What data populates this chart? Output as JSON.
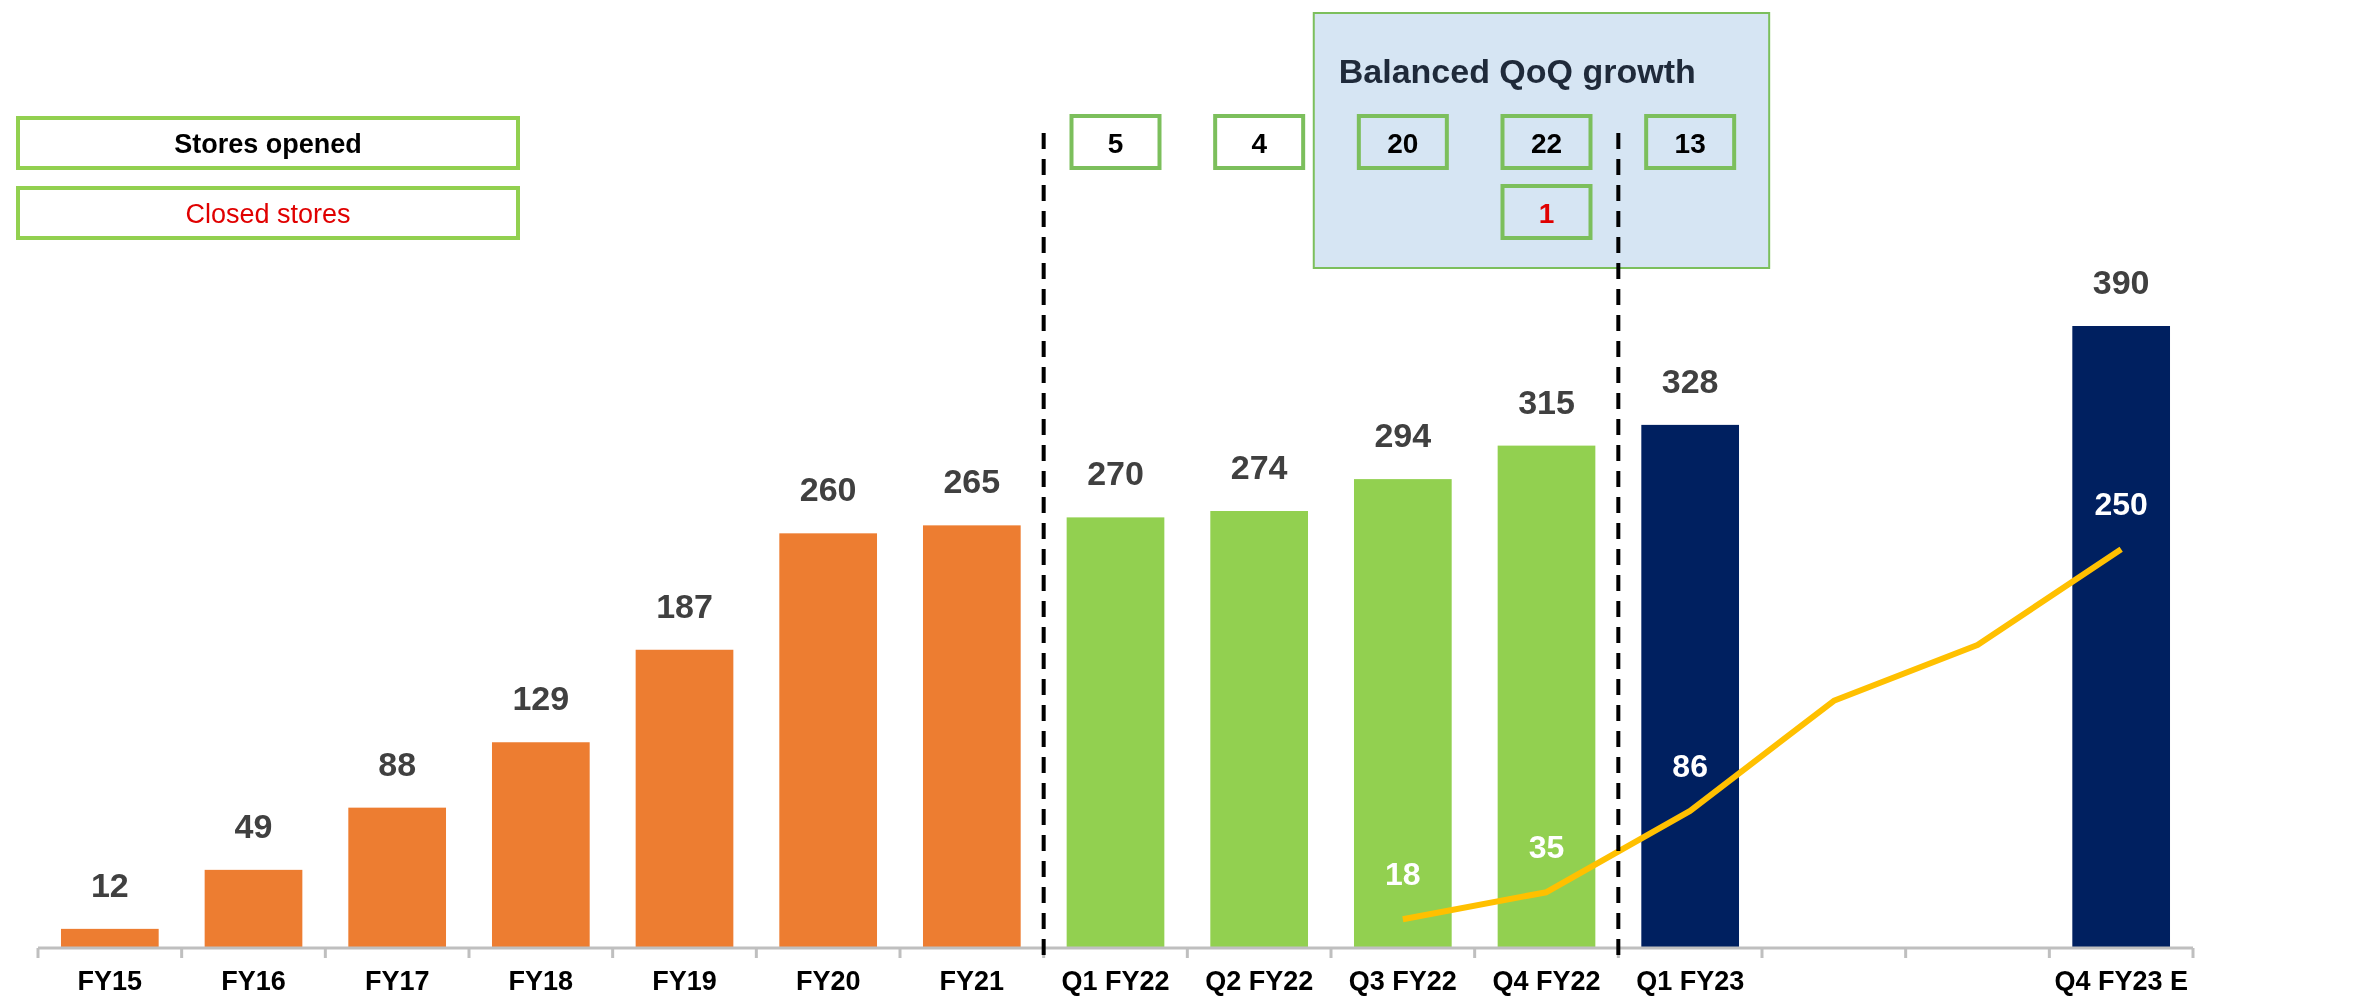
{
  "chart_data": {
    "type": "bar",
    "categories": [
      "FY15",
      "FY16",
      "FY17",
      "FY18",
      "FY19",
      "FY20",
      "FY21",
      "Q1 FY22",
      "Q2 FY22",
      "Q3 FY22",
      "Q4 FY22",
      "Q1 FY23",
      null,
      null,
      "Q4 FY23 E"
    ],
    "series": [
      {
        "colors": [
          "#ed7d31",
          "#ed7d31",
          "#ed7d31",
          "#ed7d31",
          "#ed7d31",
          "#ed7d31",
          "#ed7d31",
          "#92d050",
          "#92d050",
          "#92d050",
          "#92d050",
          "#002060",
          null,
          null,
          "#002060"
        ],
        "values": [
          12,
          49,
          88,
          129,
          187,
          260,
          265,
          270,
          274,
          294,
          315,
          328,
          null,
          null,
          390
        ],
        "value_labels": [
          "12",
          "49",
          "88",
          "129",
          "187",
          "260",
          "265",
          "270",
          "274",
          "294",
          "315",
          "328",
          null,
          null,
          "390"
        ]
      },
      {
        "type": "line",
        "color": "#ffc000",
        "values": [
          null,
          null,
          null,
          null,
          null,
          null,
          null,
          null,
          null,
          18,
          35,
          86,
          155,
          190,
          250
        ],
        "value_labels": [
          null,
          null,
          null,
          null,
          null,
          null,
          null,
          null,
          null,
          "18",
          "35",
          "86",
          null,
          null,
          "250"
        ]
      }
    ],
    "annotations": [
      "Balanced QoQ growth",
      "Stores opened",
      "Closed stores",
      "5",
      "4",
      "20",
      "22",
      "1",
      "13"
    ]
  }
}
